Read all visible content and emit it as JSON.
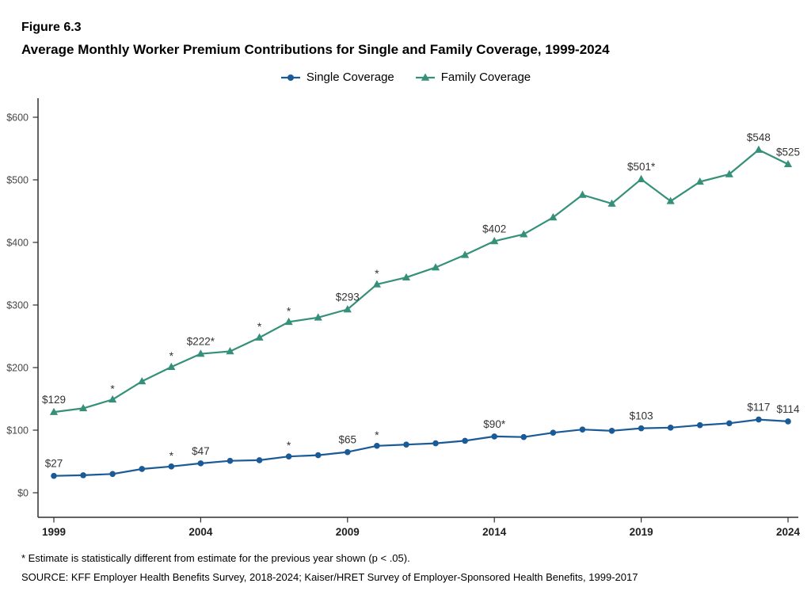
{
  "header": {
    "figure_label": "Figure 6.3",
    "title": "Average Monthly Worker Premium Contributions for Single and Family Coverage, 1999-2024"
  },
  "legend": {
    "items": [
      {
        "label": "Single Coverage",
        "color": "#1A5A96",
        "marker": "circle"
      },
      {
        "label": "Family Coverage",
        "color": "#35907A",
        "marker": "triangle"
      }
    ]
  },
  "chart_data": {
    "type": "line",
    "title": "Average Monthly Worker Premium Contributions for Single and Family Coverage, 1999-2024",
    "figure": "Figure 6.3",
    "x": [
      1999,
      2000,
      2001,
      2002,
      2003,
      2004,
      2005,
      2006,
      2007,
      2008,
      2009,
      2010,
      2011,
      2012,
      2013,
      2014,
      2015,
      2016,
      2017,
      2018,
      2019,
      2020,
      2021,
      2022,
      2023,
      2024
    ],
    "x_tick_years": [
      1999,
      2004,
      2009,
      2014,
      2019,
      2024
    ],
    "y_ticks": [
      0,
      100,
      200,
      300,
      400,
      500,
      600
    ],
    "y_tick_labels": [
      "$0",
      "$100",
      "$200",
      "$300",
      "$400",
      "$500",
      "$600"
    ],
    "ylim": [
      0,
      600
    ],
    "grid": false,
    "legend_position": "top-center",
    "series": [
      {
        "name": "Single Coverage",
        "color": "#1A5A96",
        "marker": "circle",
        "values": [
          27,
          28,
          30,
          38,
          42,
          47,
          51,
          52,
          58,
          60,
          65,
          75,
          77,
          79,
          83,
          90,
          89,
          96,
          101,
          99,
          103,
          104,
          108,
          111,
          117,
          114
        ],
        "point_labels": [
          {
            "year": 1999,
            "text": "$27"
          },
          {
            "year": 2004,
            "text": "$47"
          },
          {
            "year": 2009,
            "text": "$65"
          },
          {
            "year": 2014,
            "text": "$90*"
          },
          {
            "year": 2019,
            "text": "$103"
          },
          {
            "year": 2023,
            "text": "$117"
          },
          {
            "year": 2024,
            "text": "$114"
          }
        ],
        "asterisk_years": [
          2003,
          2007,
          2010
        ]
      },
      {
        "name": "Family Coverage",
        "color": "#35907A",
        "marker": "triangle",
        "values": [
          129,
          135,
          149,
          178,
          201,
          222,
          226,
          248,
          273,
          280,
          293,
          333,
          344,
          360,
          380,
          402,
          413,
          440,
          476,
          462,
          501,
          466,
          497,
          509,
          548,
          525
        ],
        "point_labels": [
          {
            "year": 1999,
            "text": "$129"
          },
          {
            "year": 2004,
            "text": "$222*"
          },
          {
            "year": 2009,
            "text": "$293"
          },
          {
            "year": 2014,
            "text": "$402"
          },
          {
            "year": 2019,
            "text": "$501*"
          },
          {
            "year": 2023,
            "text": "$548"
          },
          {
            "year": 2024,
            "text": "$525"
          }
        ],
        "asterisk_years": [
          2001,
          2003,
          2006,
          2007,
          2010
        ]
      }
    ]
  },
  "footer": {
    "footnote": "* Estimate is statistically different from estimate for the previous year shown (p < .05).",
    "source": "SOURCE: KFF Employer Health Benefits Survey, 2018-2024; Kaiser/HRET Survey of Employer-Sponsored Health Benefits, 1999-2017"
  }
}
